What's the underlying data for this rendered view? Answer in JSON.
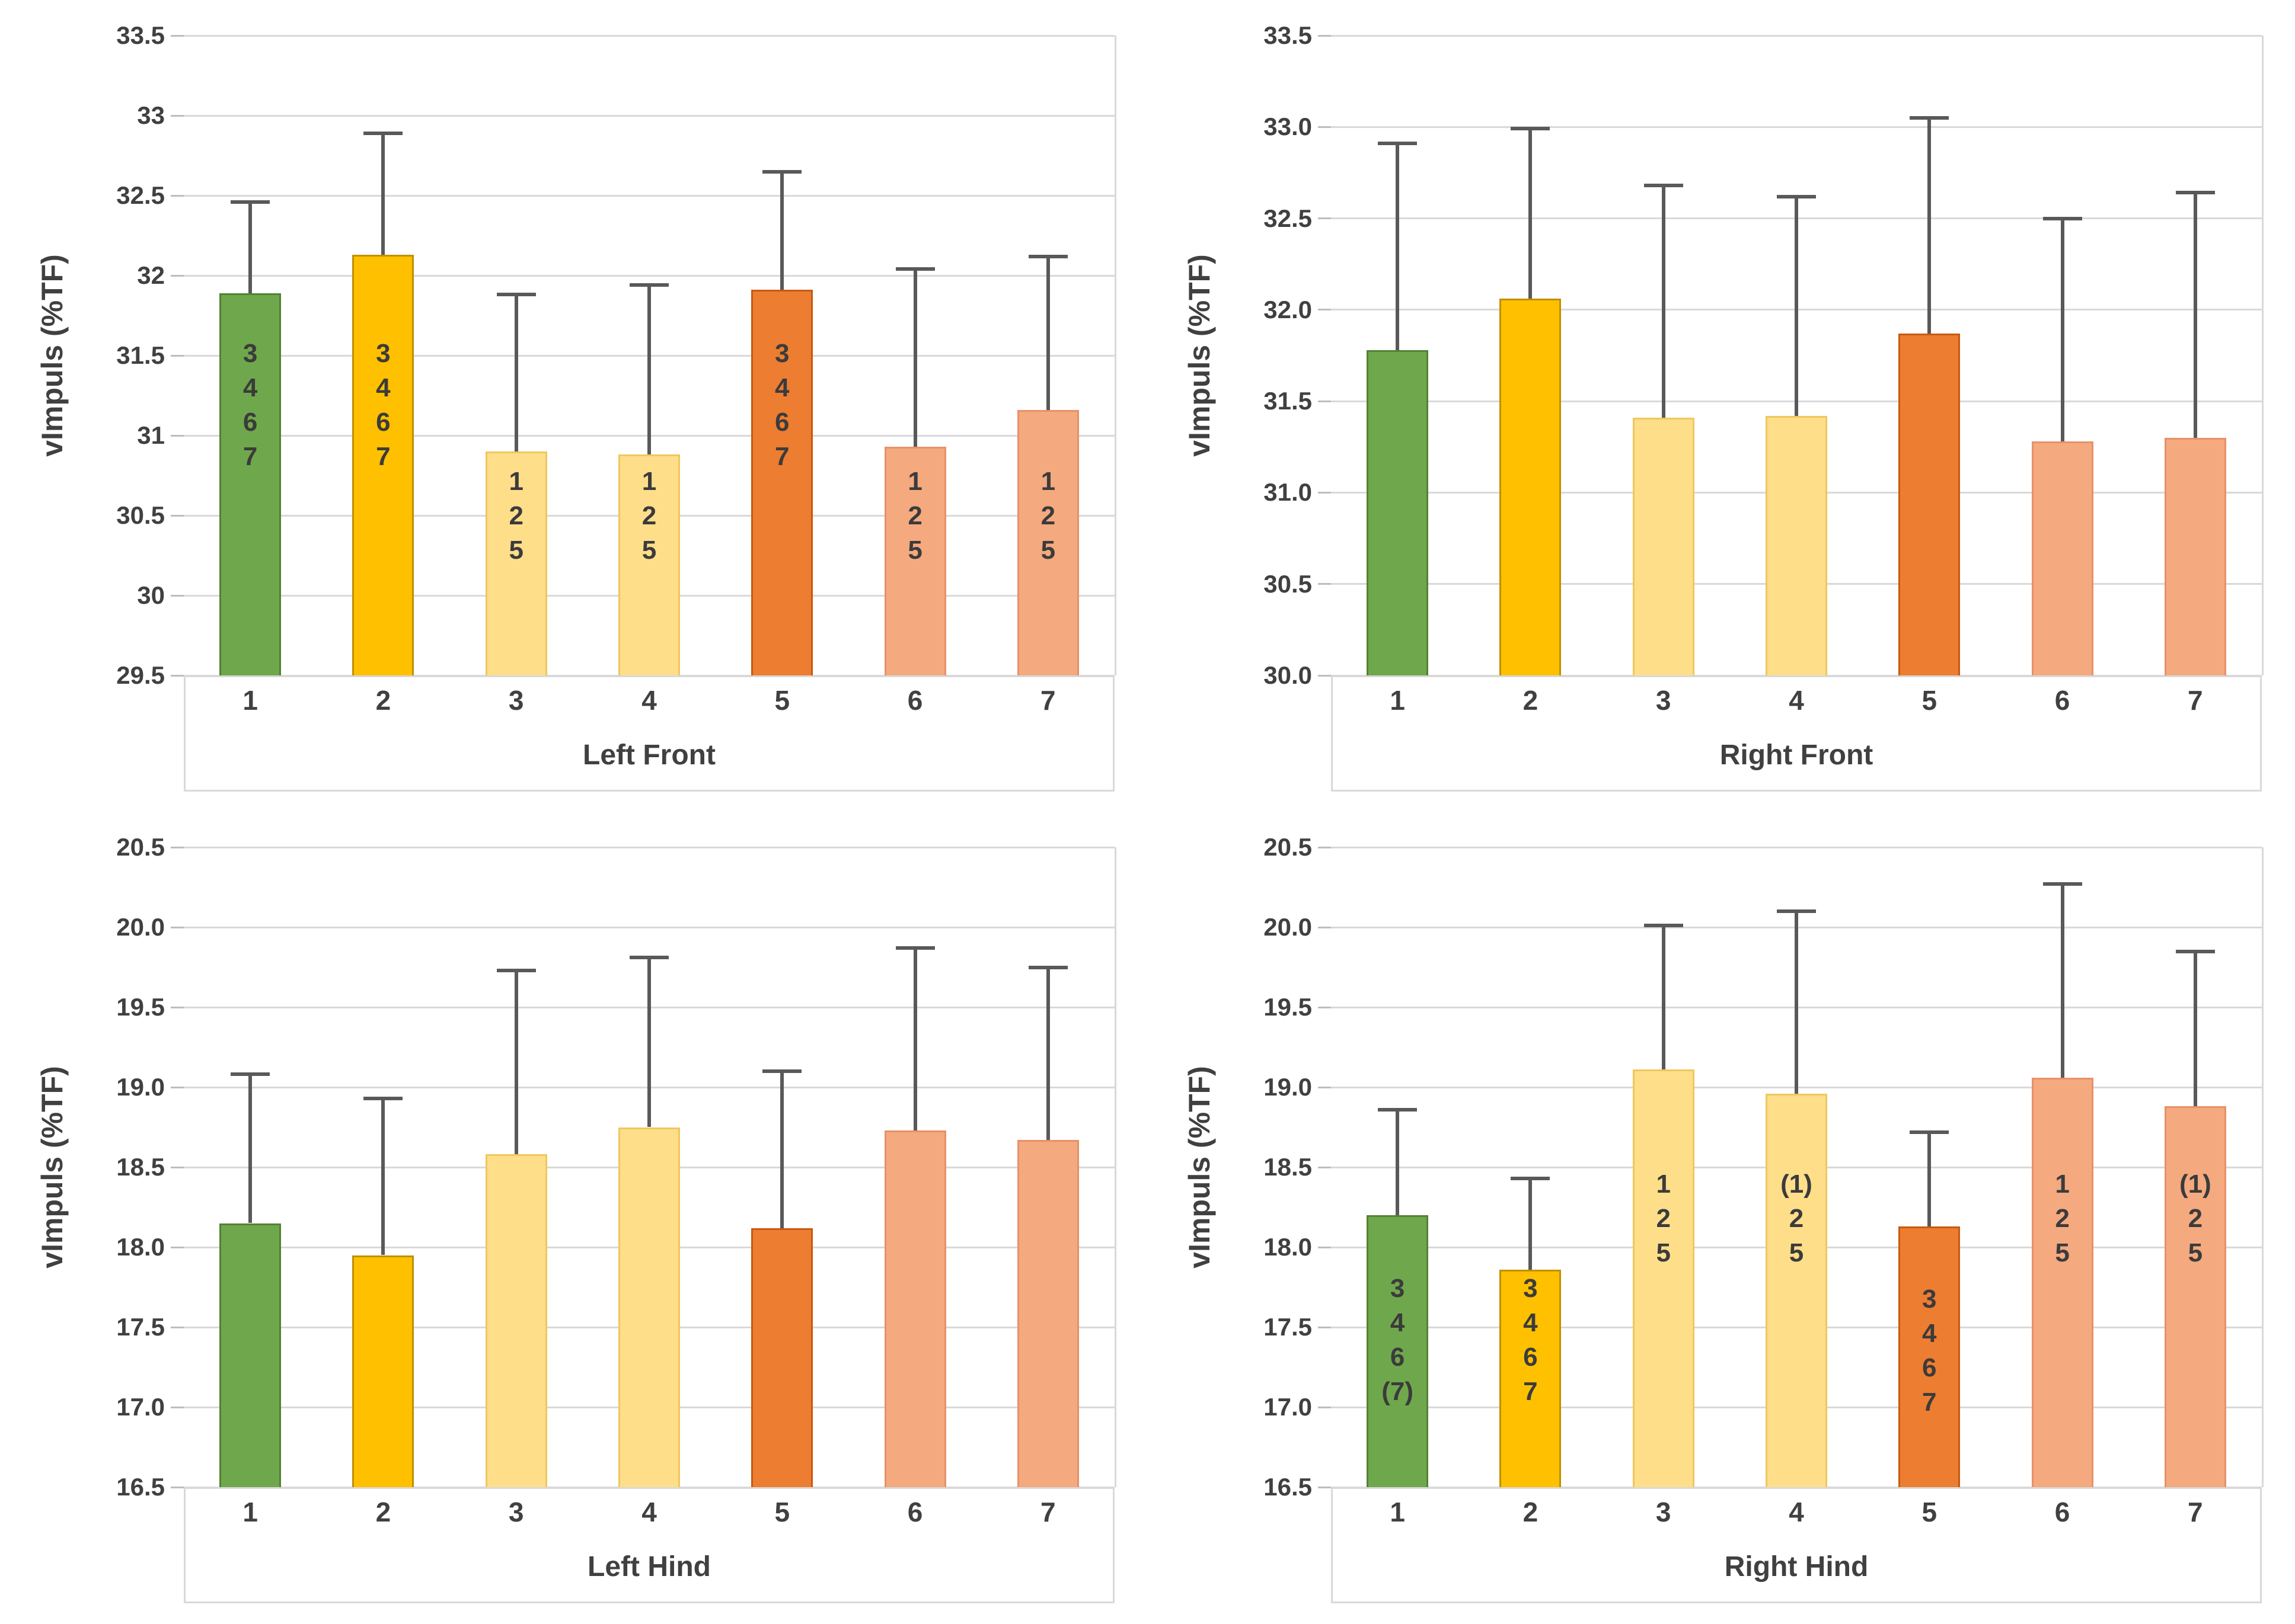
{
  "styles": {
    "background": "#ffffff",
    "gridline_color": "#d9d9d9",
    "tick_color": "#bdbdbd",
    "axis_text_color": "#404040",
    "error_bar_color": "#595959",
    "annotation_text_color": "#3b3b3b",
    "label_box_border_color": "#d9d9d9"
  },
  "bar_colors": [
    {
      "fill": "#6FA84C",
      "stroke": "#538135"
    },
    {
      "fill": "#FFC000",
      "stroke": "#BF9000"
    },
    {
      "fill": "#FFDE8A",
      "stroke": "#EFC75E"
    },
    {
      "fill": "#FFDE8A",
      "stroke": "#EFC75E"
    },
    {
      "fill": "#ED7D31",
      "stroke": "#C55A11"
    },
    {
      "fill": "#F4A97E",
      "stroke": "#E79167"
    },
    {
      "fill": "#F4A97E",
      "stroke": "#E79167"
    }
  ],
  "chart_data": [
    {
      "type": "bar",
      "title": "",
      "xlabel": "Left Front",
      "ylabel": "vImpuls (%TF)",
      "ylim": [
        29.5,
        33.5
      ],
      "ytick_step": 0.5,
      "grid": true,
      "legend": false,
      "ytick_labels": [
        "33.5",
        "33",
        "32.5",
        "32",
        "31.5",
        "31",
        "30.5",
        "30",
        "29.5"
      ],
      "categories": [
        "1",
        "2",
        "3",
        "4",
        "5",
        "6",
        "7"
      ],
      "values": [
        31.89,
        32.13,
        30.9,
        30.88,
        31.91,
        30.93,
        31.16
      ],
      "error_high": [
        32.46,
        32.89,
        31.88,
        31.94,
        32.65,
        32.04,
        32.12
      ],
      "annotations": [
        {
          "lines": [
            "3",
            "4",
            "6",
            "7"
          ],
          "top": 31.62
        },
        {
          "lines": [
            "3",
            "4",
            "6",
            "7"
          ],
          "top": 31.62
        },
        {
          "lines": [
            "1",
            "2",
            "5"
          ],
          "top": 30.82
        },
        {
          "lines": [
            "1",
            "2",
            "5"
          ],
          "top": 30.82
        },
        {
          "lines": [
            "3",
            "4",
            "6",
            "7"
          ],
          "top": 31.62
        },
        {
          "lines": [
            "1",
            "2",
            "5"
          ],
          "top": 30.82
        },
        {
          "lines": [
            "1",
            "2",
            "5"
          ],
          "top": 30.82
        }
      ]
    },
    {
      "type": "bar",
      "title": "",
      "xlabel": "Right Front",
      "ylabel": "vImpuls (%TF)",
      "ylim": [
        30.0,
        33.5
      ],
      "ytick_step": 0.5,
      "grid": true,
      "legend": false,
      "ytick_labels": [
        "33.5",
        "33.0",
        "32.5",
        "32.0",
        "31.5",
        "31.0",
        "30.5",
        "30.0"
      ],
      "categories": [
        "1",
        "2",
        "3",
        "4",
        "5",
        "6",
        "7"
      ],
      "values": [
        31.78,
        32.06,
        31.41,
        31.42,
        31.87,
        31.28,
        31.3
      ],
      "error_high": [
        32.91,
        32.99,
        32.68,
        32.62,
        33.05,
        32.5,
        32.64
      ],
      "annotations": [
        null,
        null,
        null,
        null,
        null,
        null,
        null
      ]
    },
    {
      "type": "bar",
      "title": "",
      "xlabel": "Left Hind",
      "ylabel": "vImpuls (%TF)",
      "ylim": [
        16.5,
        20.5
      ],
      "ytick_step": 0.5,
      "grid": true,
      "legend": false,
      "ytick_labels": [
        "20.5",
        "20.0",
        "19.5",
        "19.0",
        "18.5",
        "18.0",
        "17.5",
        "17.0",
        "16.5"
      ],
      "categories": [
        "1",
        "2",
        "3",
        "4",
        "5",
        "6",
        "7"
      ],
      "values": [
        18.15,
        17.95,
        18.58,
        18.75,
        18.12,
        18.73,
        18.67
      ],
      "error_high": [
        19.08,
        18.93,
        19.73,
        19.81,
        19.1,
        19.87,
        19.75
      ],
      "annotations": [
        null,
        null,
        null,
        null,
        null,
        null,
        null
      ]
    },
    {
      "type": "bar",
      "title": "",
      "xlabel": "Right Hind",
      "ylabel": "vImpuls (%TF)",
      "ylim": [
        16.5,
        20.5
      ],
      "ytick_step": 0.5,
      "grid": true,
      "legend": false,
      "ytick_labels": [
        "20.5",
        "20.0",
        "19.5",
        "19.0",
        "18.5",
        "18.0",
        "17.5",
        "17.0",
        "16.5"
      ],
      "categories": [
        "1",
        "2",
        "3",
        "4",
        "5",
        "6",
        "7"
      ],
      "values": [
        18.2,
        17.86,
        19.11,
        18.96,
        18.13,
        19.06,
        18.88
      ],
      "error_high": [
        18.86,
        18.43,
        20.01,
        20.1,
        18.72,
        20.27,
        19.85
      ],
      "annotations": [
        {
          "lines": [
            "3",
            "4",
            "6",
            "(7)"
          ],
          "top": 17.85
        },
        {
          "lines": [
            "3",
            "4",
            "6",
            "7"
          ],
          "top": 17.85
        },
        {
          "lines": [
            "1",
            "2",
            "5"
          ],
          "top": 18.5
        },
        {
          "lines": [
            "(1)",
            "2",
            "5"
          ],
          "top": 18.5
        },
        {
          "lines": [
            "3",
            "4",
            "6",
            "7"
          ],
          "top": 17.78
        },
        {
          "lines": [
            "1",
            "2",
            "5"
          ],
          "top": 18.5
        },
        {
          "lines": [
            "(1)",
            "2",
            "5"
          ],
          "top": 18.5
        }
      ]
    }
  ]
}
